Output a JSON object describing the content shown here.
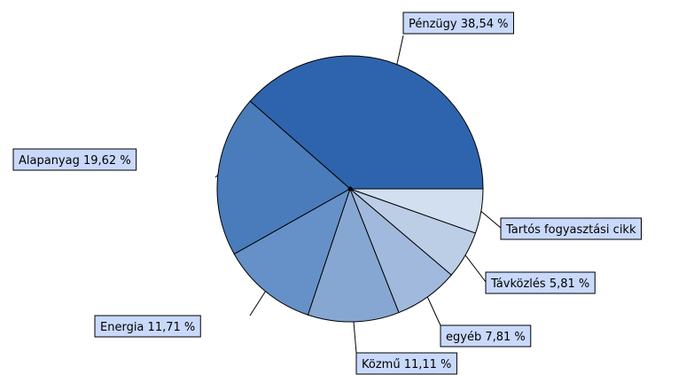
{
  "chart_data": {
    "type": "pie",
    "categories": [
      "Pénzügy",
      "Alapanyag",
      "Energia",
      "Közmű",
      "egyéb",
      "Távközlés",
      "Tartós fogyasztási cikk"
    ],
    "values": [
      38.54,
      19.62,
      11.71,
      11.11,
      7.81,
      5.81,
      5.4
    ],
    "value_labels": [
      "38,54 %",
      "19,62 %",
      "11,71 %",
      "11,11 %",
      "7,81 %",
      "5,81 %",
      null
    ],
    "colors": [
      "#2e64ad",
      "#4a7cbb",
      "#6691c8",
      "#86a7d2",
      "#a1b9dc",
      "#bccde6",
      "#d2dff0"
    ]
  }
}
